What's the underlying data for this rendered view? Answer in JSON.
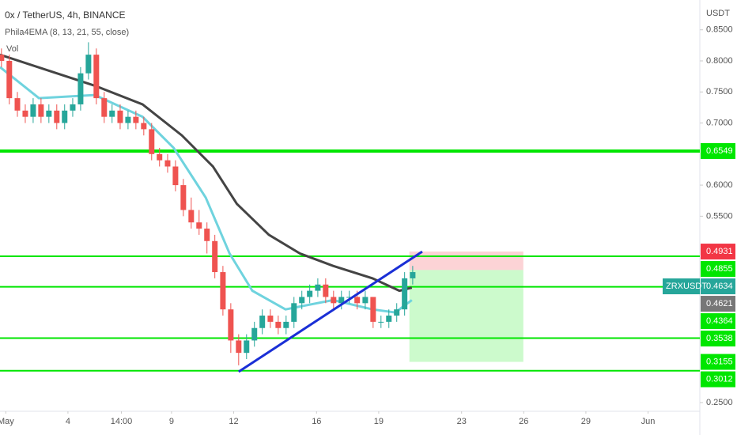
{
  "chart_data": {
    "type": "candlestick",
    "title": "0x / TetherUS, 4h, BINANCE",
    "indicator": "Phila4EMA (8, 13, 21, 55, close)",
    "volume_label": "Vol",
    "currency": "USDT",
    "xlim": [
      0.72,
      34.5
    ],
    "ylim": [
      0.236,
      0.898
    ],
    "yticks": [
      {
        "value": 0.85,
        "label": "0.8500"
      },
      {
        "value": 0.8,
        "label": "0.8000"
      },
      {
        "value": 0.75,
        "label": "0.7500"
      },
      {
        "value": 0.7,
        "label": "0.7000"
      },
      {
        "value": 0.6,
        "label": "0.6000"
      },
      {
        "value": 0.55,
        "label": "0.5500"
      },
      {
        "value": 0.25,
        "label": "0.2500"
      }
    ],
    "xticks": [
      {
        "value": 1,
        "label": "May"
      },
      4,
      {
        "value": 6.58,
        "label": "14:00"
      },
      9,
      12,
      16,
      19,
      23,
      26,
      29,
      {
        "value": 32,
        "label": "Jun"
      }
    ],
    "up_color": "#26a69a",
    "down_color": "#ef5350",
    "candles": [
      [
        0.79,
        0.81,
        0.82,
        0.79,
        0.8
      ],
      [
        1.17,
        0.8,
        0.81,
        0.73,
        0.74
      ],
      [
        1.56,
        0.74,
        0.75,
        0.71,
        0.72
      ],
      [
        1.94,
        0.72,
        0.73,
        0.7,
        0.71
      ],
      [
        2.32,
        0.71,
        0.74,
        0.7,
        0.73
      ],
      [
        2.7,
        0.73,
        0.74,
        0.7,
        0.71
      ],
      [
        3.08,
        0.71,
        0.73,
        0.7,
        0.72
      ],
      [
        3.46,
        0.72,
        0.73,
        0.69,
        0.7
      ],
      [
        3.84,
        0.7,
        0.73,
        0.69,
        0.72
      ],
      [
        4.23,
        0.72,
        0.74,
        0.71,
        0.73
      ],
      [
        4.61,
        0.73,
        0.79,
        0.72,
        0.78
      ],
      [
        4.99,
        0.78,
        0.83,
        0.77,
        0.81
      ],
      [
        5.37,
        0.81,
        0.82,
        0.73,
        0.74
      ],
      [
        5.75,
        0.74,
        0.75,
        0.7,
        0.71
      ],
      [
        6.13,
        0.71,
        0.73,
        0.7,
        0.72
      ],
      [
        6.52,
        0.72,
        0.73,
        0.69,
        0.7
      ],
      [
        6.9,
        0.7,
        0.72,
        0.69,
        0.71
      ],
      [
        7.28,
        0.71,
        0.72,
        0.69,
        0.7
      ],
      [
        7.66,
        0.7,
        0.71,
        0.68,
        0.69
      ],
      [
        8.04,
        0.69,
        0.7,
        0.64,
        0.65
      ],
      [
        8.42,
        0.65,
        0.66,
        0.63,
        0.64
      ],
      [
        8.81,
        0.64,
        0.65,
        0.62,
        0.63
      ],
      [
        9.19,
        0.63,
        0.64,
        0.59,
        0.6
      ],
      [
        9.57,
        0.6,
        0.61,
        0.55,
        0.56
      ],
      [
        9.95,
        0.56,
        0.58,
        0.53,
        0.54
      ],
      [
        10.33,
        0.54,
        0.56,
        0.52,
        0.53
      ],
      [
        10.71,
        0.53,
        0.54,
        0.49,
        0.51
      ],
      [
        11.09,
        0.51,
        0.52,
        0.45,
        0.46
      ],
      [
        11.48,
        0.46,
        0.47,
        0.39,
        0.4
      ],
      [
        11.86,
        0.4,
        0.41,
        0.33,
        0.35
      ],
      [
        12.24,
        0.35,
        0.36,
        0.31,
        0.33
      ],
      [
        12.62,
        0.33,
        0.36,
        0.32,
        0.35
      ],
      [
        13.0,
        0.35,
        0.38,
        0.34,
        0.37
      ],
      [
        13.38,
        0.37,
        0.4,
        0.36,
        0.39
      ],
      [
        13.77,
        0.39,
        0.4,
        0.37,
        0.38
      ],
      [
        14.15,
        0.38,
        0.39,
        0.36,
        0.37
      ],
      [
        14.53,
        0.37,
        0.39,
        0.36,
        0.38
      ],
      [
        14.91,
        0.38,
        0.42,
        0.37,
        0.41
      ],
      [
        15.29,
        0.41,
        0.43,
        0.4,
        0.42
      ],
      [
        15.67,
        0.42,
        0.44,
        0.41,
        0.43
      ],
      [
        16.06,
        0.43,
        0.45,
        0.42,
        0.44
      ],
      [
        16.44,
        0.44,
        0.45,
        0.41,
        0.42
      ],
      [
        16.82,
        0.42,
        0.43,
        0.4,
        0.41
      ],
      [
        17.2,
        0.41,
        0.43,
        0.4,
        0.42
      ],
      [
        17.58,
        0.42,
        0.43,
        0.41,
        0.42
      ],
      [
        17.96,
        0.42,
        0.43,
        0.4,
        0.41
      ],
      [
        18.35,
        0.41,
        0.43,
        0.4,
        0.42
      ],
      [
        18.73,
        0.42,
        0.42,
        0.37,
        0.38
      ],
      [
        19.11,
        0.38,
        0.39,
        0.37,
        0.38
      ],
      [
        19.49,
        0.38,
        0.4,
        0.37,
        0.39
      ],
      [
        19.87,
        0.39,
        0.41,
        0.38,
        0.4
      ],
      [
        20.25,
        0.4,
        0.46,
        0.39,
        0.45
      ],
      [
        20.64,
        0.45,
        0.47,
        0.44,
        0.46
      ]
    ],
    "series": [
      {
        "color": "#444444",
        "x": [
          0.72,
          5.3,
          7.6,
          9.5,
          11.0,
          12.15,
          13.7,
          15.2,
          16.8,
          18.7,
          20.0,
          20.6
        ],
        "values": [
          0.81,
          0.76,
          0.73,
          0.68,
          0.63,
          0.57,
          0.52,
          0.49,
          0.47,
          0.45,
          0.43,
          0.435
        ]
      },
      {
        "color": "#6fd3de",
        "x": [
          0.72,
          2.6,
          5.3,
          7.6,
          9.1,
          10.65,
          11.8,
          12.9,
          14.5,
          16.8,
          18.7,
          19.8,
          20.6
        ],
        "values": [
          0.79,
          0.74,
          0.745,
          0.71,
          0.66,
          0.58,
          0.49,
          0.43,
          0.4,
          0.415,
          0.4,
          0.395,
          0.415
        ]
      }
    ],
    "levels": [
      0.6549,
      0.4855,
      0.4364,
      0.3538,
      0.3012
    ],
    "level_color": "#00e600",
    "trendline": {
      "color": "#1a2fd6",
      "x": [
        12.24,
        21.1
      ],
      "values": [
        0.2996,
        0.493
      ]
    },
    "position": {
      "x": [
        20.48,
        25.98
      ],
      "entry": 0.4634,
      "stop": 0.4931,
      "target": 0.3155
    },
    "price_labels": [
      {
        "value": 0.6549,
        "color": "#00e600"
      },
      {
        "value": 0.4931,
        "color": "#f23645"
      },
      {
        "value": 0.4855,
        "color": "#00e600"
      },
      {
        "name": "ZRXUSDT",
        "value": 0.4634,
        "color": "#26a69a"
      },
      {
        "value": 0.4621,
        "color": "#777777"
      },
      {
        "value": 0.4364,
        "color": "#00e600"
      },
      {
        "value": 0.3538,
        "color": "#00e600"
      },
      {
        "value": 0.3155,
        "color": "#00e600"
      },
      {
        "value": 0.3012,
        "color": "#00e600"
      }
    ]
  }
}
